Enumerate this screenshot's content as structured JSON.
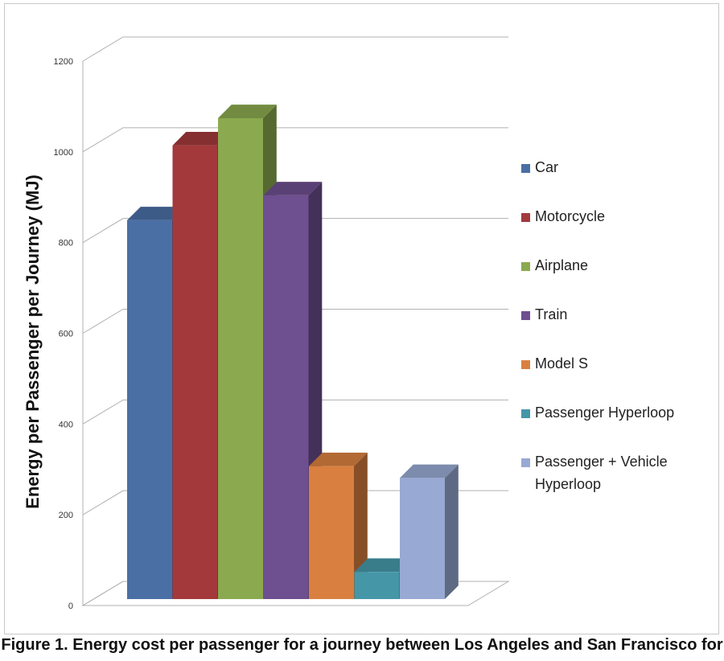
{
  "chart_data": {
    "type": "bar",
    "title": "",
    "ylabel": "Energy per Passenger per Journey (MJ)",
    "xlabel": "",
    "ylim": [
      0,
      1200
    ],
    "yticks": [
      0,
      200,
      400,
      600,
      800,
      1000,
      1200
    ],
    "grid": true,
    "legend_position": "right",
    "series": [
      {
        "name": "Car",
        "value": 835,
        "color": "#4A6FA5"
      },
      {
        "name": "Motorcycle",
        "value": 1000,
        "color": "#A4393C"
      },
      {
        "name": "Airplane",
        "value": 1060,
        "color": "#8BAA4F"
      },
      {
        "name": "Train",
        "value": 890,
        "color": "#6E4F8F"
      },
      {
        "name": "Model S",
        "value": 293,
        "color": "#D98040"
      },
      {
        "name": "Passenger Hyperloop",
        "value": 60,
        "color": "#4597A8"
      },
      {
        "name": "Passenger + Vehicle Hyperloop",
        "value": 267,
        "color": "#98A9D3"
      }
    ]
  },
  "legend": {
    "items": [
      {
        "label": "Car",
        "color": "#4A6FA5"
      },
      {
        "label": "Motorcycle",
        "color": "#A4393C"
      },
      {
        "label": "Airplane",
        "color": "#8BAA4F"
      },
      {
        "label": "Train",
        "color": "#6E4F8F"
      },
      {
        "label": "Model S",
        "color": "#D98040"
      },
      {
        "label": "Passenger Hyperloop",
        "color": "#4597A8"
      },
      {
        "label": "Passenger + Vehicle Hyperloop",
        "color": "#98A9D3"
      }
    ]
  },
  "caption": "Figure 1. Energy cost per passenger for a journey between Los Angeles and San Francisco for"
}
